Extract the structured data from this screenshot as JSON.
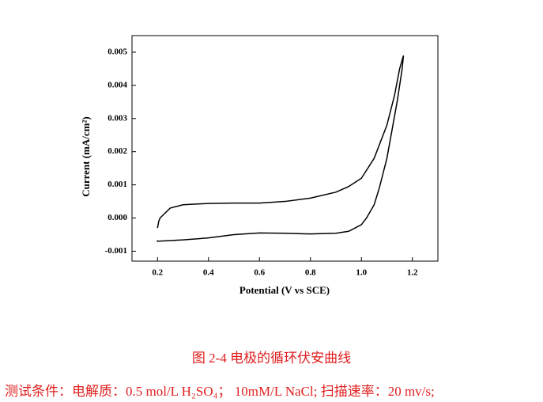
{
  "chart_data": {
    "type": "line",
    "x_label": "Potential (V vs SCE)",
    "y_label": "Current (mA/cm²)",
    "color": "#000000",
    "x": [
      0.2,
      0.205,
      0.21,
      0.25,
      0.3,
      0.4,
      0.5,
      0.6,
      0.7,
      0.8,
      0.9,
      0.95,
      1.0,
      1.05,
      1.1,
      1.13,
      1.15,
      1.165,
      1.16,
      1.14,
      1.1,
      1.07,
      1.05,
      1.02,
      1.0,
      0.95,
      0.9,
      0.8,
      0.7,
      0.6,
      0.5,
      0.4,
      0.3,
      0.2,
      0.2
    ],
    "values": [
      -0.0003,
      -0.0001,
      0.0,
      0.0003,
      0.0004,
      0.00044,
      0.00045,
      0.00045,
      0.0005,
      0.0006,
      0.00078,
      0.00095,
      0.0012,
      0.0018,
      0.0028,
      0.0037,
      0.0045,
      0.0049,
      0.0045,
      0.0035,
      0.0018,
      0.0009,
      0.0004,
      0.0,
      -0.0002,
      -0.0004,
      -0.00046,
      -0.00048,
      -0.00046,
      -0.00045,
      -0.0005,
      -0.0006,
      -0.00066,
      -0.0007,
      -0.00067
    ],
    "xlim": [
      0.1,
      1.3
    ],
    "xticks": [
      0.2,
      0.4,
      0.6,
      0.8,
      {
        "value": 1.0,
        "label": "1.0"
      },
      1.2
    ],
    "ylim": [
      -0.0013,
      0.0055
    ],
    "yticks": [
      -0.001,
      {
        "value": 0,
        "label": "0.000"
      },
      0.001,
      0.002,
      0.003,
      0.004,
      0.005
    ]
  },
  "caption": {
    "title": "图 2-4  电极的循环伏安曲线",
    "conditions": "测试条件：电解质：0.5 mol/L H₂SO₄；  10mM/L NaCl;  扫描速率：20 mv/s;"
  }
}
